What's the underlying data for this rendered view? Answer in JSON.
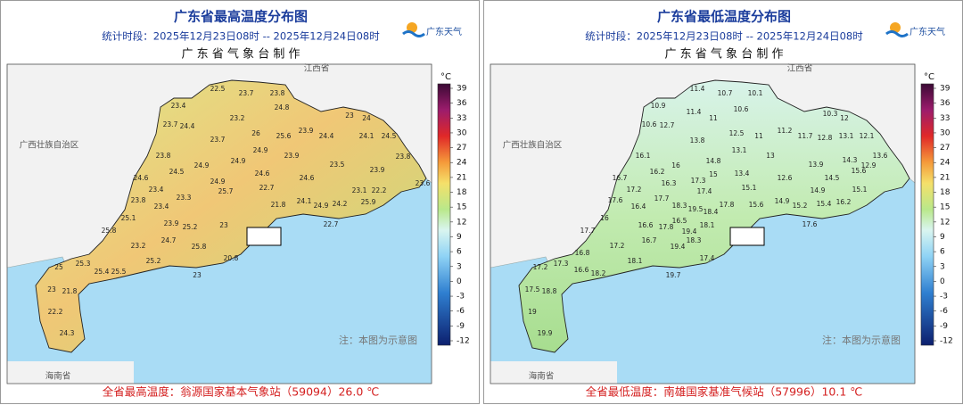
{
  "panels": [
    {
      "title": "广东省最高温度分布图",
      "period": "统计时段：2025年12月23日08时 -- 2025年12月24日08时",
      "issuer": "广 东 省 气 象 台 制 作",
      "logo_text": "广东天气",
      "unit": "°C",
      "legend_ticks": [
        39,
        36,
        33,
        30,
        27,
        24,
        21,
        18,
        15,
        12,
        9,
        6,
        3,
        0,
        -3,
        -6,
        -9,
        -12
      ],
      "regions": [
        "江西省",
        "广西壮族自治区",
        "海南省"
      ],
      "note": "注：本图为示意图",
      "footer": "全省最高温度：翁源国家基本气象站（59094）26.0 ℃",
      "stations": [
        22.5,
        23.7,
        23.8,
        23.4,
        24.8,
        23.2,
        23.7,
        24.4,
        26,
        25.6,
        23.9,
        24.4,
        24.1,
        24.5,
        23.7,
        23.8,
        24.9,
        23.9,
        24.9,
        23.5,
        24.5,
        24.9,
        24.6,
        24.6,
        23.4,
        24.9,
        22.7,
        24.6,
        23.1,
        23.3,
        25.7,
        24.1,
        24.9,
        23.8,
        23.4,
        24.2,
        21.8,
        25.1,
        23.9,
        25.2,
        23,
        24.7,
        25.8,
        23.2,
        25.8,
        22.7,
        25,
        25.3,
        25.4,
        25.5,
        25.2,
        20.8,
        23,
        23,
        21.8,
        22.2,
        24.3,
        23.9,
        22.2,
        25.9,
        23,
        24,
        23.8,
        23.6
      ]
    },
    {
      "title": "广东省最低温度分布图",
      "period": "统计时段：2025年12月23日08时 -- 2025年12月24日08时",
      "issuer": "广 东 省 气 象 台 制 作",
      "logo_text": "广东天气",
      "unit": "°C",
      "legend_ticks": [
        39,
        36,
        33,
        30,
        27,
        24,
        21,
        18,
        15,
        12,
        9,
        6,
        3,
        0,
        -3,
        -6,
        -9,
        -12
      ],
      "regions": [
        "江西省",
        "广西壮族自治区",
        "海南省"
      ],
      "note": "注：本图为示意图",
      "footer": "全省最低温度：南雄国家基准气候站（57996）10.1 ℃",
      "stations": [
        11.4,
        10.7,
        10.1,
        11.4,
        10.6,
        10.9,
        11,
        10.6,
        12.7,
        12.5,
        11,
        11.2,
        11.7,
        10.3,
        12,
        12.8,
        13.1,
        12.1,
        13.8,
        16.1,
        14.8,
        13.1,
        13,
        16,
        16.2,
        13.9,
        14.3,
        12.9,
        13.6,
        16.7,
        16.3,
        17.3,
        15,
        13.4,
        12.6,
        14.5,
        15.6,
        17.2,
        17.4,
        15.1,
        14.9,
        15.1,
        16.4,
        17.7,
        17.8,
        15.6,
        14.9,
        15.2,
        15.4,
        16.2,
        17.6,
        16,
        18.3,
        19.5,
        16.5,
        18.4,
        16.6,
        17.8,
        19.4,
        18.1,
        17.7,
        16.7,
        17.2,
        18.3,
        19.4,
        17.4,
        17.6,
        18.1,
        16.8,
        17.3,
        18.2,
        17.2,
        16.6,
        19.7,
        17.5,
        18.8,
        19,
        19.9
      ]
    }
  ]
}
